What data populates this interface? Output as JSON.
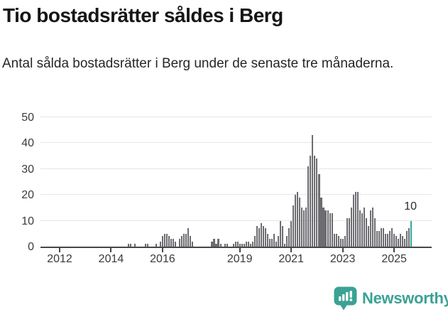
{
  "header": {
    "title": "Tio bostadsrätter såldes i Berg",
    "subtitle": "Antal sålda bostadsrätter i Berg under de senaste tre månaderna."
  },
  "chart_data": {
    "type": "bar",
    "title": "Tio bostadsrätter såldes i Berg",
    "subtitle": "Antal sålda bostadsrätter i Berg under de senaste tre månaderna.",
    "frequency": "monthly",
    "x_start": "2011-01",
    "x_end": "2025-09",
    "ylim": [
      0,
      50
    ],
    "y_ticks": [
      0,
      10,
      20,
      30,
      40,
      50
    ],
    "x_tick_years": [
      2012,
      2014,
      2016,
      2019,
      2021,
      2023,
      2025
    ],
    "x_tick_labels": [
      "2012",
      "2014",
      "2016",
      "2019",
      "2021",
      "2023",
      "2025"
    ],
    "grid": true,
    "legend": false,
    "bar_color": "#6c6c71",
    "highlight_color": "#2fa8a6",
    "highlight_last_bar": true,
    "highlight_value": 10,
    "highlight_label": "10",
    "values": [
      0,
      0,
      0,
      0,
      0,
      0,
      0,
      0,
      0,
      0,
      0,
      0,
      0,
      0,
      0,
      0,
      0,
      0,
      0,
      0,
      0,
      0,
      0,
      0,
      0,
      0,
      0,
      0,
      0,
      0,
      0,
      0,
      0,
      0,
      0,
      0,
      0,
      0,
      0,
      0,
      0,
      0,
      0,
      0,
      1,
      1,
      0,
      1,
      0,
      0,
      0,
      0,
      1,
      1,
      0,
      0,
      0,
      1,
      0,
      2,
      4,
      5,
      5,
      4,
      3,
      3,
      2,
      0,
      3,
      4,
      5,
      5,
      7,
      4,
      2,
      0,
      0,
      0,
      0,
      0,
      0,
      0,
      0,
      2,
      3,
      1,
      3,
      1,
      0,
      1,
      1,
      0,
      0,
      1,
      2,
      2,
      1,
      1,
      1,
      2,
      2,
      1,
      2,
      4,
      8,
      7,
      9,
      8,
      7,
      5,
      3,
      3,
      5,
      2,
      4,
      10,
      8,
      1,
      4,
      7,
      10,
      16,
      20,
      21,
      19,
      15,
      14,
      15,
      31,
      35,
      43,
      35,
      34,
      28,
      19,
      15,
      14,
      14,
      13,
      13,
      5,
      5,
      4,
      3,
      3,
      4,
      11,
      11,
      15,
      20,
      21,
      21,
      14,
      13,
      15,
      11,
      8,
      14,
      15,
      11,
      6,
      6,
      7,
      7,
      5,
      5,
      6,
      7,
      5,
      4,
      3,
      5,
      4,
      3,
      6,
      7,
      10
    ]
  },
  "footer": {
    "brand": "Newsworthy"
  },
  "colors": {
    "bar": "#6c6c71",
    "highlight": "#2fa8a6",
    "gridline": "#e6e6e6",
    "axis": "#47474a",
    "brand": "#3aa294"
  }
}
